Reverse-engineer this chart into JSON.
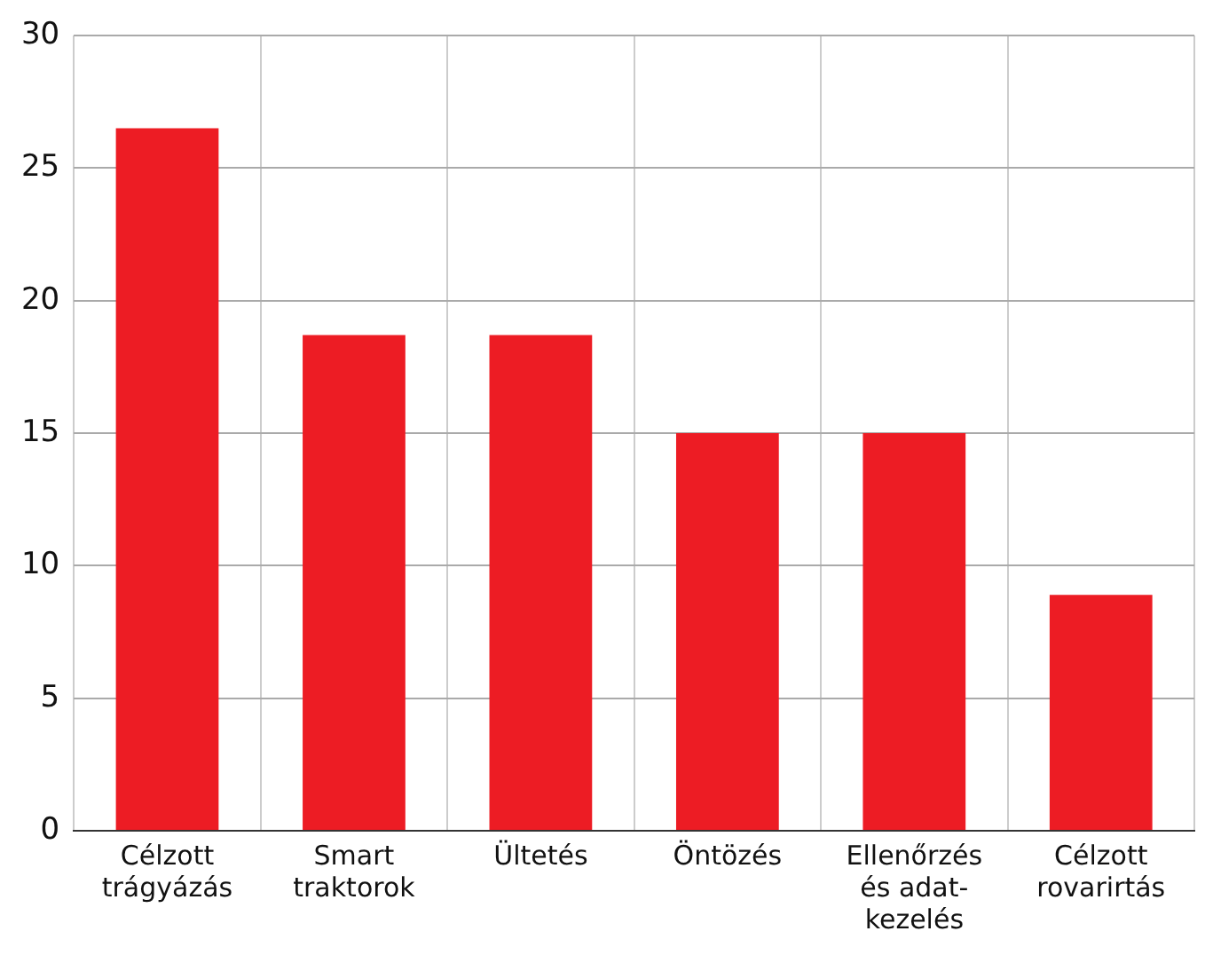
{
  "chart_data": {
    "type": "bar",
    "categories": [
      "Célzott\ntrágyázás",
      "Smart\ntraktorok",
      "Ültetés",
      "Öntözés",
      "Ellenőrzés\nés adat-\nkezelés",
      "Célzott\nrovarirtás"
    ],
    "values": [
      26.5,
      18.7,
      18.7,
      15,
      15,
      8.9
    ],
    "color": "#ed1c24",
    "ylim": [
      0,
      30
    ],
    "yticks": [
      0,
      5,
      10,
      15,
      20,
      25,
      30
    ],
    "grid": true,
    "legend": false
  }
}
